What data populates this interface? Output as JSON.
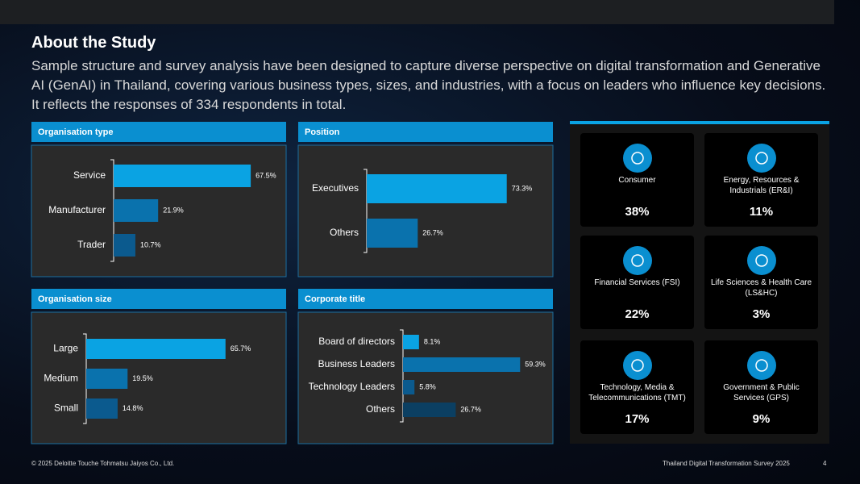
{
  "header": {
    "title": "About the Study",
    "description": "Sample structure and survey analysis have been designed to capture diverse perspective on digital transformation and Generative AI (GenAI) in Thailand, covering various business types, sizes, and industries, with a focus on leaders who influence key decisions. It reflects the responses of 334 respondents in total."
  },
  "chart_data": [
    {
      "type": "bar",
      "orientation": "horizontal",
      "title": "Organisation type",
      "categories": [
        "Service",
        "Manufacturer",
        "Trader"
      ],
      "values": [
        67.5,
        21.9,
        10.7
      ],
      "value_labels": [
        "67.5%",
        "21.9%",
        "10.7%"
      ],
      "colors": [
        "#0aa3e3",
        "#0a72ad",
        "#0b5a8e"
      ]
    },
    {
      "type": "bar",
      "orientation": "horizontal",
      "title": "Position",
      "categories": [
        "Executives",
        "Others"
      ],
      "values": [
        73.3,
        26.7
      ],
      "value_labels": [
        "73.3%",
        "26.7%"
      ],
      "colors": [
        "#0aa3e3",
        "#0a72ad"
      ]
    },
    {
      "type": "bar",
      "orientation": "horizontal",
      "title": "Organisation size",
      "categories": [
        "Large",
        "Medium",
        "Small"
      ],
      "values": [
        65.7,
        19.5,
        14.8
      ],
      "value_labels": [
        "65.7%",
        "19.5%",
        "14.8%"
      ],
      "colors": [
        "#0aa3e3",
        "#0a72ad",
        "#0b5a8e"
      ]
    },
    {
      "type": "bar",
      "orientation": "horizontal",
      "title": "Corporate title",
      "categories": [
        "Board of directors",
        "Business Leaders",
        "Technology Leaders",
        "Others"
      ],
      "values": [
        8.1,
        59.3,
        5.8,
        26.7
      ],
      "value_labels": [
        "8.1%",
        "59.3%",
        "5.8%",
        "26.7%"
      ],
      "colors": [
        "#0aa3e3",
        "#0a72ad",
        "#0b5a8e",
        "#0b3f62"
      ]
    }
  ],
  "industries": [
    {
      "name": "Consumer",
      "share": "38%"
    },
    {
      "name": "Energy, Resources & Industrials (ER&I)",
      "share": "11%"
    },
    {
      "name": "Financial Services (FSI)",
      "share": "22%"
    },
    {
      "name": "Life Sciences & Health Care (LS&HC)",
      "share": "3%"
    },
    {
      "name": "Technology, Media & Telecommunications (TMT)",
      "share": "17%"
    },
    {
      "name": "Government & Public Services (GPS)",
      "share": "9%"
    }
  ],
  "footer": {
    "copyright": "© 2025 Deloitte Touche Tohmatsu Jaiyos Co., Ltd.",
    "survey": "Thailand Digital Transformation Survey 2025",
    "page": "4"
  }
}
